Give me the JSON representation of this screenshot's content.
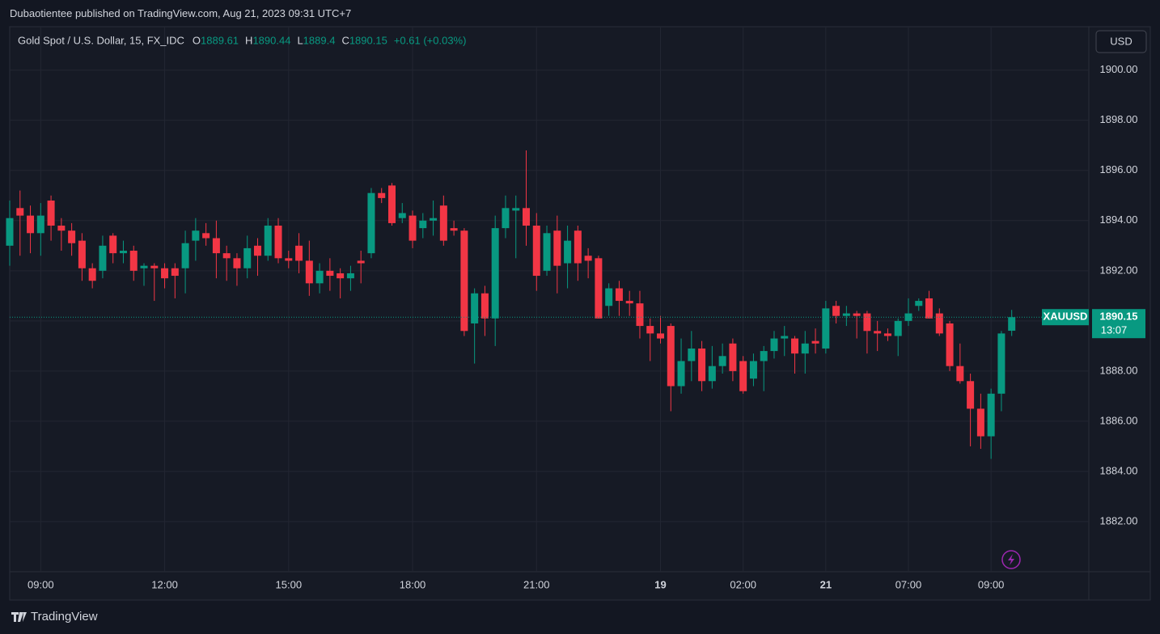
{
  "header": "Dubaotientee published on TradingView.com, Aug 21, 2023 09:31 UTC+7",
  "footer": "TradingView",
  "chart_data": {
    "type": "candlestick",
    "title": "Gold Spot / U.S. Dollar, 15, FX_IDC",
    "ohlc_labels": [
      "O",
      "H",
      "L",
      "C"
    ],
    "change": "+0.61 (+0.03%)",
    "currency": "USD",
    "symbol": "XAUUSD",
    "countdown": "13:07",
    "up_color": "#089981",
    "down_color": "#f23645",
    "grid": true,
    "ylim": [
      1880.0,
      1901.7
    ],
    "yticks": [
      {
        "value": 1882,
        "label": "1882.00"
      },
      {
        "value": 1884,
        "label": "1884.00"
      },
      {
        "value": 1886,
        "label": "1886.00"
      },
      {
        "value": 1888,
        "label": "1888.00"
      },
      {
        "value": 1890,
        "label": "1890.00"
      },
      {
        "value": 1892,
        "label": "1892.00"
      },
      {
        "value": 1894,
        "label": "1894.00"
      },
      {
        "value": 1896,
        "label": "1896.00"
      },
      {
        "value": 1898,
        "label": "1898.00"
      },
      {
        "value": 1900,
        "label": "1900.00"
      }
    ],
    "categories": [
      null,
      null,
      null,
      "09:00",
      null,
      null,
      null,
      null,
      null,
      null,
      null,
      null,
      null,
      null,
      null,
      "12:00",
      null,
      null,
      null,
      null,
      null,
      null,
      null,
      null,
      null,
      null,
      null,
      "15:00",
      null,
      null,
      null,
      null,
      null,
      null,
      null,
      null,
      null,
      null,
      null,
      "18:00",
      null,
      null,
      null,
      null,
      null,
      null,
      null,
      null,
      null,
      null,
      null,
      "21:00",
      null,
      null,
      null,
      null,
      null,
      null,
      null,
      null,
      null,
      null,
      null,
      "19",
      null,
      null,
      null,
      null,
      null,
      null,
      null,
      "02:00",
      null,
      null,
      null,
      null,
      null,
      null,
      null,
      "21",
      null,
      null,
      null,
      null,
      null,
      null,
      null,
      "07:00",
      null,
      null,
      null,
      null,
      null,
      null,
      null,
      "09:00",
      null,
      null
    ],
    "open": [
      1893.0,
      1894.5,
      1894.2,
      1893.5,
      1894.8,
      1893.8,
      1893.6,
      1893.2,
      1892.1,
      1892.0,
      1893.4,
      1892.7,
      1892.8,
      1892.1,
      1892.2,
      1892.1,
      1892.1,
      1892.1,
      1893.2,
      1893.5,
      1893.3,
      1892.7,
      1892.5,
      1892.1,
      1893.0,
      1892.6,
      1893.8,
      1892.5,
      1893.0,
      1892.4,
      1891.5,
      1892.0,
      1891.9,
      1891.7,
      1892.4,
      1892.7,
      1895.1,
      1895.4,
      1894.1,
      1894.2,
      1893.7,
      1894.0,
      1894.6,
      1893.7,
      1893.6,
      1889.9,
      1891.1,
      1890.1,
      1893.7,
      1894.4,
      1894.5,
      1893.8,
      1892.0,
      1893.6,
      1892.3,
      1893.6,
      1892.6,
      1892.5,
      1890.6,
      1891.3,
      1890.8,
      1890.7,
      1889.8,
      1889.5,
      1889.8,
      1887.4,
      1888.4,
      1888.9,
      1887.6,
      1888.2,
      1889.1,
      1888.4,
      1887.7,
      1888.4,
      1888.8,
      1889.3,
      1889.3,
      1888.7,
      1889.2,
      1888.9,
      1890.6,
      1890.2,
      1890.3,
      1890.3,
      1889.6,
      1889.5,
      1889.4,
      1890.0,
      1890.6,
      1890.9,
      1890.3,
      1889.9,
      1888.2,
      1887.6,
      1886.5,
      1885.4,
      1887.1,
      1889.61
    ],
    "high": [
      1894.8,
      1895.2,
      1894.6,
      1894.7,
      1895.0,
      1894.1,
      1893.9,
      1893.5,
      1892.3,
      1893.4,
      1893.5,
      1893.2,
      1893.0,
      1892.3,
      1892.3,
      1892.3,
      1892.3,
      1893.6,
      1894.1,
      1893.9,
      1894.0,
      1893.0,
      1892.7,
      1893.4,
      1893.3,
      1894.1,
      1894.1,
      1892.8,
      1893.5,
      1893.2,
      1892.3,
      1892.5,
      1892.1,
      1892.2,
      1892.8,
      1895.3,
      1895.3,
      1895.5,
      1894.7,
      1894.4,
      1894.3,
      1894.8,
      1895.0,
      1894.0,
      1893.7,
      1891.3,
      1891.4,
      1894.2,
      1895.0,
      1895.0,
      1896.8,
      1894.3,
      1893.8,
      1894.2,
      1893.8,
      1893.8,
      1892.9,
      1892.6,
      1891.5,
      1891.6,
      1891.2,
      1891.2,
      1890.1,
      1890.2,
      1889.9,
      1889.3,
      1889.6,
      1889.2,
      1889.0,
      1889.1,
      1889.3,
      1888.6,
      1888.7,
      1889.0,
      1889.6,
      1889.8,
      1889.4,
      1889.6,
      1889.7,
      1890.8,
      1890.8,
      1890.6,
      1890.4,
      1890.4,
      1890.0,
      1889.7,
      1890.1,
      1890.9,
      1890.9,
      1891.2,
      1890.5,
      1890.0,
      1889.1,
      1887.9,
      1887.1,
      1887.3,
      1889.6,
      1890.44
    ],
    "low": [
      1892.2,
      1892.6,
      1892.7,
      1892.6,
      1893.2,
      1892.8,
      1892.6,
      1891.6,
      1891.3,
      1891.7,
      1892.3,
      1892.3,
      1891.6,
      1891.4,
      1890.8,
      1891.3,
      1890.9,
      1891.1,
      1892.4,
      1893.0,
      1891.7,
      1891.6,
      1891.4,
      1891.7,
      1891.8,
      1892.4,
      1892.3,
      1892.1,
      1891.9,
      1891.0,
      1891.1,
      1891.2,
      1890.9,
      1891.2,
      1891.5,
      1892.5,
      1894.7,
      1893.8,
      1893.9,
      1892.9,
      1893.3,
      1893.4,
      1893.0,
      1893.4,
      1889.4,
      1888.3,
      1889.4,
      1889.0,
      1893.3,
      1892.5,
      1893.0,
      1891.2,
      1891.8,
      1891.1,
      1891.3,
      1891.6,
      1891.7,
      1890.1,
      1890.2,
      1890.2,
      1890.2,
      1889.3,
      1888.4,
      1889.1,
      1886.4,
      1887.1,
      1887.6,
      1887.2,
      1887.3,
      1887.9,
      1887.6,
      1887.1,
      1887.4,
      1887.2,
      1888.5,
      1888.6,
      1887.9,
      1887.9,
      1888.7,
      1888.7,
      1889.9,
      1889.8,
      1889.3,
      1888.7,
      1888.8,
      1889.2,
      1888.6,
      1889.8,
      1890.4,
      1890.1,
      1889.4,
      1888.0,
      1887.5,
      1885.0,
      1884.9,
      1884.5,
      1886.4,
      1889.4
    ],
    "close": [
      1894.1,
      1894.2,
      1893.5,
      1894.2,
      1893.8,
      1893.6,
      1893.1,
      1892.1,
      1891.6,
      1893.0,
      1892.7,
      1892.8,
      1892.0,
      1892.2,
      1892.1,
      1891.7,
      1891.8,
      1893.1,
      1893.6,
      1893.3,
      1892.7,
      1892.5,
      1892.1,
      1892.9,
      1892.6,
      1893.8,
      1892.5,
      1892.4,
      1892.4,
      1891.5,
      1892.0,
      1891.8,
      1891.7,
      1891.9,
      1892.3,
      1895.1,
      1894.9,
      1893.9,
      1894.3,
      1893.2,
      1894.0,
      1894.1,
      1893.2,
      1893.6,
      1889.6,
      1891.1,
      1890.1,
      1893.7,
      1894.5,
      1894.5,
      1893.8,
      1891.8,
      1893.5,
      1892.2,
      1893.2,
      1892.3,
      1892.4,
      1890.1,
      1891.3,
      1890.8,
      1890.7,
      1889.8,
      1889.5,
      1889.3,
      1887.4,
      1888.4,
      1888.9,
      1887.6,
      1888.2,
      1888.6,
      1888.0,
      1887.2,
      1888.4,
      1888.8,
      1889.3,
      1889.4,
      1888.7,
      1889.1,
      1889.1,
      1890.5,
      1890.2,
      1890.3,
      1890.2,
      1889.6,
      1889.5,
      1889.4,
      1890.0,
      1890.3,
      1890.8,
      1890.1,
      1889.5,
      1888.2,
      1887.6,
      1886.5,
      1885.4,
      1887.1,
      1889.5,
      1890.15
    ]
  }
}
